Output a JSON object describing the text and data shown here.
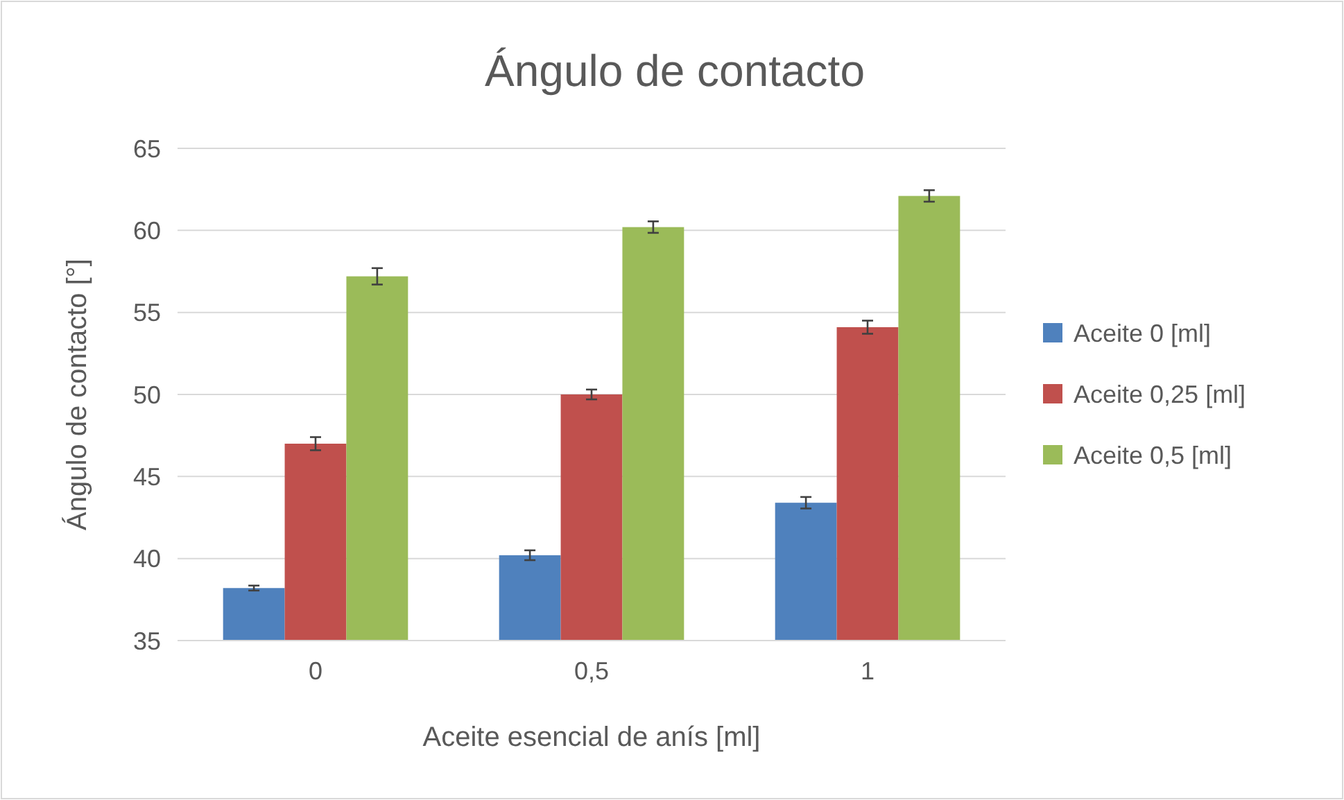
{
  "chart_data": {
    "type": "bar",
    "title": "Ángulo de contacto",
    "xlabel": "Aceite esencial de anís [ml]",
    "ylabel": "Ángulo de contacto [°]",
    "categories": [
      "0",
      "0,5",
      "1"
    ],
    "series": [
      {
        "name": "Aceite 0 [ml]",
        "color": "#4f81bd",
        "values": [
          38.2,
          40.2,
          43.4
        ],
        "errors": [
          0.15,
          0.3,
          0.35
        ]
      },
      {
        "name": "Aceite 0,25 [ml]",
        "color": "#c0504d",
        "values": [
          47.0,
          50.0,
          54.1
        ],
        "errors": [
          0.4,
          0.3,
          0.4
        ]
      },
      {
        "name": "Aceite 0,5 [ml]",
        "color": "#9bbb59",
        "values": [
          57.2,
          60.2,
          62.1
        ],
        "errors": [
          0.5,
          0.35,
          0.35
        ]
      }
    ],
    "ylim": [
      35,
      65
    ],
    "yticks": [
      35,
      40,
      45,
      50,
      55,
      60,
      65
    ],
    "grid": "y",
    "legend": "right"
  }
}
